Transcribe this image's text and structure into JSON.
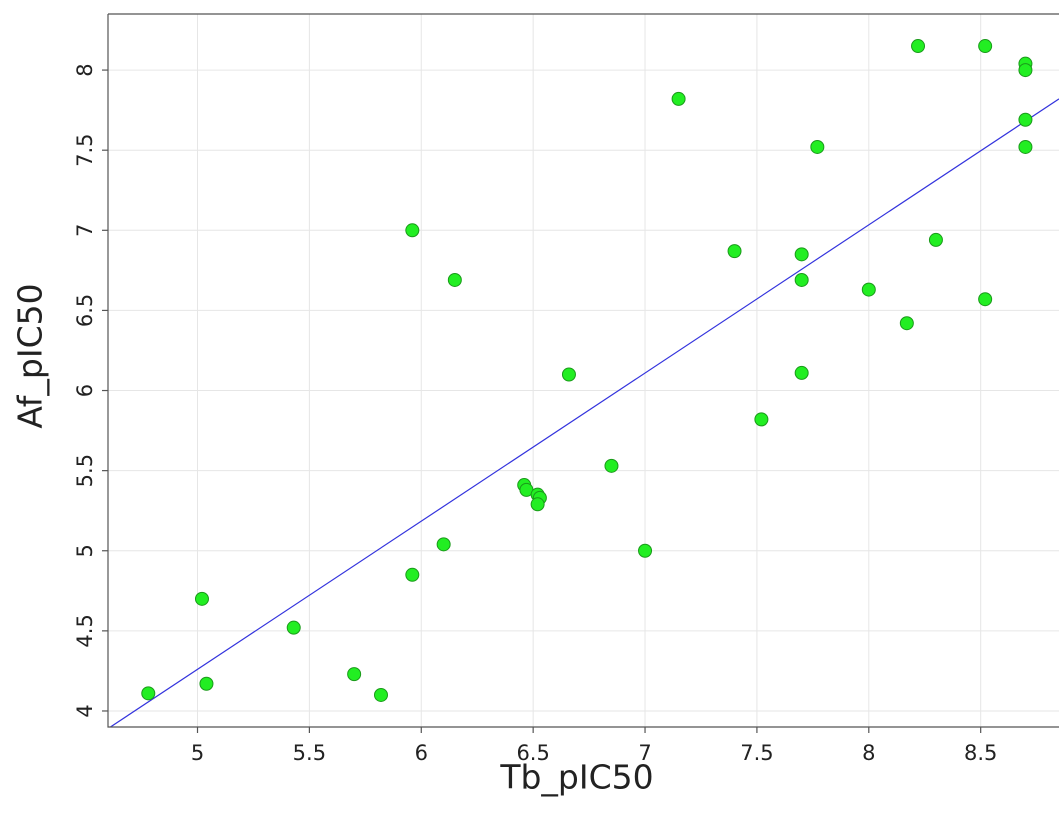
{
  "chart_data": {
    "type": "scatter",
    "title": "",
    "xlabel": "Tb_pIC50",
    "ylabel": "Af_pIC50",
    "xlim": [
      4.6,
      8.85
    ],
    "ylim": [
      3.9,
      8.35
    ],
    "xticks": [
      5,
      5.5,
      6,
      6.5,
      7,
      7.5,
      8,
      8.5
    ],
    "xtick_labels": [
      "5",
      "5.5",
      "6",
      "6.5",
      "7",
      "7.5",
      "8",
      "8.5"
    ],
    "yticks": [
      4,
      4.5,
      5,
      5.5,
      6,
      6.5,
      7,
      7.5,
      8
    ],
    "ytick_labels": [
      "4",
      "4.5",
      "5",
      "5.5",
      "6",
      "6.5",
      "7",
      "7.5",
      "8"
    ],
    "grid": true,
    "legend": "none",
    "point_color": "#22ee22",
    "point_edge_color": "#1a9a1a",
    "line_color": "#3333dd",
    "trendline": {
      "x": [
        4.6,
        8.85
      ],
      "y": [
        3.89,
        7.82
      ]
    },
    "points": [
      {
        "x": 4.78,
        "y": 4.11
      },
      {
        "x": 5.02,
        "y": 4.7
      },
      {
        "x": 5.04,
        "y": 4.17
      },
      {
        "x": 5.43,
        "y": 4.52
      },
      {
        "x": 5.7,
        "y": 4.23
      },
      {
        "x": 5.82,
        "y": 4.1
      },
      {
        "x": 5.96,
        "y": 4.85
      },
      {
        "x": 5.96,
        "y": 7.0
      },
      {
        "x": 6.1,
        "y": 5.04
      },
      {
        "x": 6.15,
        "y": 6.69
      },
      {
        "x": 6.46,
        "y": 5.41
      },
      {
        "x": 6.47,
        "y": 5.38
      },
      {
        "x": 6.52,
        "y": 5.35
      },
      {
        "x": 6.53,
        "y": 5.33
      },
      {
        "x": 6.52,
        "y": 5.29
      },
      {
        "x": 6.66,
        "y": 6.1
      },
      {
        "x": 6.85,
        "y": 5.53
      },
      {
        "x": 7.0,
        "y": 5.0
      },
      {
        "x": 7.15,
        "y": 7.82
      },
      {
        "x": 7.4,
        "y": 6.87
      },
      {
        "x": 7.52,
        "y": 5.82
      },
      {
        "x": 7.7,
        "y": 6.85
      },
      {
        "x": 7.7,
        "y": 6.69
      },
      {
        "x": 7.7,
        "y": 6.11
      },
      {
        "x": 7.77,
        "y": 7.52
      },
      {
        "x": 8.0,
        "y": 6.63
      },
      {
        "x": 8.17,
        "y": 6.42
      },
      {
        "x": 8.22,
        "y": 8.15
      },
      {
        "x": 8.3,
        "y": 6.94
      },
      {
        "x": 8.52,
        "y": 8.15
      },
      {
        "x": 8.52,
        "y": 6.57
      },
      {
        "x": 8.7,
        "y": 8.04
      },
      {
        "x": 8.7,
        "y": 8.0
      },
      {
        "x": 8.7,
        "y": 7.69
      },
      {
        "x": 8.7,
        "y": 7.52
      }
    ]
  }
}
